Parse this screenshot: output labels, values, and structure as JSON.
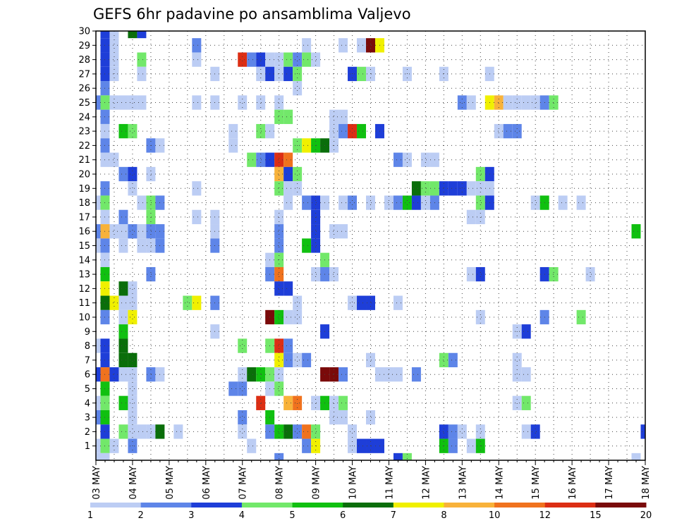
{
  "chart_data": {
    "type": "heatmap",
    "title": "GEFS 6hr padavine po ansamblima Valjevo",
    "x_tick_labels": [
      "03 MAY",
      "04 MAY",
      "05 MAY",
      "06 MAY",
      "07 MAY",
      "08 MAY",
      "09 MAY",
      "10 MAY",
      "11 MAY",
      "12 MAY",
      "13 MAY",
      "14 MAY",
      "15 MAY",
      "16 MAY",
      "17 MAY",
      "18 MAY"
    ],
    "y_tick_labels": [
      "1",
      "2",
      "3",
      "4",
      "5",
      "6",
      "7",
      "8",
      "9",
      "10",
      "11",
      "12",
      "13",
      "14",
      "15",
      "16",
      "17",
      "18",
      "19",
      "20",
      "21",
      "22",
      "23",
      "24",
      "25",
      "26",
      "27",
      "28",
      "29",
      "30"
    ],
    "x_range": [
      "03 MAY 00Z",
      "18 MAY 00Z"
    ],
    "time_step_hours": 6,
    "y_range": [
      1,
      30
    ],
    "grid": "dotted",
    "colorbar": {
      "position": "bottom",
      "labels": [
        "1",
        "2",
        "3",
        "4",
        "5",
        "6",
        "7",
        "8",
        "10",
        "12",
        "15",
        "20"
      ],
      "colors": [
        "#bccdf4",
        "#5e85e8",
        "#1e3ed8",
        "#72e86a",
        "#10c010",
        "#0a6e0a",
        "#f0f000",
        "#f8b23a",
        "#f0721e",
        "#dc2e14",
        "#7a0a0a"
      ]
    },
    "cells_note": "Each cell: [member, six_hour_step_from_03_MAY_00Z, color_class_index 0..10]",
    "cells": [
      [
        30,
        1,
        2
      ],
      [
        30,
        2,
        0
      ],
      [
        30,
        4,
        5
      ],
      [
        30,
        5,
        2
      ],
      [
        29,
        1,
        2
      ],
      [
        29,
        2,
        0
      ],
      [
        29,
        11,
        1
      ],
      [
        29,
        23,
        0
      ],
      [
        29,
        27,
        0
      ],
      [
        29,
        29,
        0
      ],
      [
        29,
        30,
        10
      ],
      [
        29,
        31,
        6
      ],
      [
        28,
        1,
        2
      ],
      [
        28,
        2,
        0
      ],
      [
        28,
        5,
        3
      ],
      [
        28,
        11,
        0
      ],
      [
        28,
        16,
        9
      ],
      [
        28,
        17,
        1
      ],
      [
        28,
        18,
        2
      ],
      [
        28,
        19,
        0
      ],
      [
        28,
        20,
        0
      ],
      [
        28,
        21,
        3
      ],
      [
        28,
        22,
        1
      ],
      [
        28,
        23,
        3
      ],
      [
        28,
        24,
        0
      ],
      [
        27,
        1,
        2
      ],
      [
        27,
        2,
        0
      ],
      [
        27,
        5,
        0
      ],
      [
        27,
        13,
        0
      ],
      [
        27,
        18,
        0
      ],
      [
        27,
        19,
        2
      ],
      [
        27,
        20,
        0
      ],
      [
        27,
        21,
        2
      ],
      [
        27,
        22,
        3
      ],
      [
        27,
        28,
        2
      ],
      [
        27,
        29,
        3
      ],
      [
        27,
        30,
        0
      ],
      [
        27,
        34,
        0
      ],
      [
        27,
        38,
        0
      ],
      [
        27,
        43,
        0
      ],
      [
        26,
        1,
        1
      ],
      [
        26,
        22,
        0
      ],
      [
        25,
        0,
        1
      ],
      [
        25,
        1,
        3
      ],
      [
        25,
        2,
        0
      ],
      [
        25,
        3,
        0
      ],
      [
        25,
        4,
        0
      ],
      [
        25,
        5,
        0
      ],
      [
        25,
        11,
        0
      ],
      [
        25,
        13,
        0
      ],
      [
        25,
        16,
        0
      ],
      [
        25,
        18,
        0
      ],
      [
        25,
        20,
        0
      ],
      [
        25,
        40,
        1
      ],
      [
        25,
        41,
        0
      ],
      [
        25,
        43,
        6
      ],
      [
        25,
        44,
        7
      ],
      [
        25,
        45,
        0
      ],
      [
        25,
        46,
        0
      ],
      [
        25,
        47,
        0
      ],
      [
        25,
        48,
        0
      ],
      [
        25,
        49,
        1
      ],
      [
        25,
        50,
        3
      ],
      [
        24,
        1,
        1
      ],
      [
        24,
        20,
        3
      ],
      [
        24,
        21,
        3
      ],
      [
        24,
        26,
        0
      ],
      [
        24,
        27,
        0
      ],
      [
        23,
        1,
        0
      ],
      [
        23,
        3,
        4
      ],
      [
        23,
        4,
        3
      ],
      [
        23,
        15,
        0
      ],
      [
        23,
        18,
        3
      ],
      [
        23,
        19,
        0
      ],
      [
        23,
        26,
        0
      ],
      [
        23,
        27,
        1
      ],
      [
        23,
        28,
        9
      ],
      [
        23,
        29,
        4
      ],
      [
        23,
        31,
        2
      ],
      [
        23,
        44,
        0
      ],
      [
        23,
        45,
        1
      ],
      [
        23,
        46,
        1
      ],
      [
        22,
        1,
        1
      ],
      [
        22,
        6,
        1
      ],
      [
        22,
        7,
        0
      ],
      [
        22,
        15,
        0
      ],
      [
        22,
        22,
        3
      ],
      [
        22,
        23,
        6
      ],
      [
        22,
        24,
        4
      ],
      [
        22,
        25,
        5
      ],
      [
        22,
        26,
        0
      ],
      [
        21,
        1,
        0
      ],
      [
        21,
        2,
        0
      ],
      [
        21,
        17,
        3
      ],
      [
        21,
        18,
        1
      ],
      [
        21,
        19,
        2
      ],
      [
        21,
        20,
        9
      ],
      [
        21,
        21,
        8
      ],
      [
        21,
        33,
        1
      ],
      [
        21,
        34,
        0
      ],
      [
        21,
        36,
        0
      ],
      [
        21,
        37,
        0
      ],
      [
        20,
        3,
        1
      ],
      [
        20,
        4,
        2
      ],
      [
        20,
        6,
        0
      ],
      [
        20,
        20,
        7
      ],
      [
        20,
        21,
        2
      ],
      [
        20,
        22,
        3
      ],
      [
        20,
        42,
        3
      ],
      [
        20,
        43,
        2
      ],
      [
        19,
        1,
        1
      ],
      [
        19,
        4,
        0
      ],
      [
        19,
        11,
        0
      ],
      [
        19,
        20,
        3
      ],
      [
        19,
        21,
        0
      ],
      [
        19,
        22,
        0
      ],
      [
        19,
        35,
        5
      ],
      [
        19,
        36,
        3
      ],
      [
        19,
        37,
        3
      ],
      [
        19,
        38,
        2
      ],
      [
        19,
        39,
        2
      ],
      [
        19,
        40,
        2
      ],
      [
        19,
        41,
        0
      ],
      [
        19,
        42,
        0
      ],
      [
        19,
        43,
        0
      ],
      [
        18,
        0,
        0
      ],
      [
        18,
        1,
        3
      ],
      [
        18,
        5,
        0
      ],
      [
        18,
        6,
        3
      ],
      [
        18,
        7,
        1
      ],
      [
        18,
        21,
        0
      ],
      [
        18,
        23,
        1
      ],
      [
        18,
        24,
        2
      ],
      [
        18,
        25,
        0
      ],
      [
        18,
        27,
        0
      ],
      [
        18,
        28,
        1
      ],
      [
        18,
        30,
        0
      ],
      [
        18,
        32,
        0
      ],
      [
        18,
        33,
        1
      ],
      [
        18,
        34,
        4
      ],
      [
        18,
        35,
        2
      ],
      [
        18,
        36,
        0
      ],
      [
        18,
        37,
        1
      ],
      [
        18,
        42,
        3
      ],
      [
        18,
        43,
        2
      ],
      [
        18,
        48,
        0
      ],
      [
        18,
        49,
        4
      ],
      [
        18,
        51,
        0
      ],
      [
        18,
        53,
        0
      ],
      [
        17,
        1,
        0
      ],
      [
        17,
        3,
        1
      ],
      [
        17,
        6,
        3
      ],
      [
        17,
        11,
        0
      ],
      [
        17,
        13,
        0
      ],
      [
        17,
        20,
        0
      ],
      [
        17,
        24,
        2
      ],
      [
        17,
        41,
        0
      ],
      [
        17,
        42,
        0
      ],
      [
        16,
        0,
        1
      ],
      [
        16,
        1,
        7
      ],
      [
        16,
        2,
        0
      ],
      [
        16,
        3,
        0
      ],
      [
        16,
        4,
        1
      ],
      [
        16,
        5,
        0
      ],
      [
        16,
        6,
        1
      ],
      [
        16,
        7,
        1
      ],
      [
        16,
        13,
        0
      ],
      [
        16,
        20,
        1
      ],
      [
        16,
        24,
        2
      ],
      [
        16,
        26,
        0
      ],
      [
        16,
        27,
        0
      ],
      [
        16,
        59,
        4
      ],
      [
        15,
        0,
        0
      ],
      [
        15,
        1,
        1
      ],
      [
        15,
        3,
        0
      ],
      [
        15,
        5,
        0
      ],
      [
        15,
        6,
        0
      ],
      [
        15,
        7,
        1
      ],
      [
        15,
        13,
        1
      ],
      [
        15,
        20,
        1
      ],
      [
        15,
        23,
        4
      ],
      [
        15,
        24,
        2
      ],
      [
        14,
        1,
        0
      ],
      [
        14,
        19,
        0
      ],
      [
        14,
        20,
        3
      ],
      [
        14,
        25,
        3
      ],
      [
        13,
        1,
        4
      ],
      [
        13,
        6,
        1
      ],
      [
        13,
        19,
        1
      ],
      [
        13,
        20,
        8
      ],
      [
        13,
        24,
        0
      ],
      [
        13,
        25,
        1
      ],
      [
        13,
        26,
        0
      ],
      [
        13,
        41,
        0
      ],
      [
        13,
        42,
        2
      ],
      [
        13,
        49,
        2
      ],
      [
        13,
        50,
        3
      ],
      [
        13,
        54,
        0
      ],
      [
        12,
        1,
        6
      ],
      [
        12,
        3,
        5
      ],
      [
        12,
        4,
        0
      ],
      [
        12,
        20,
        2
      ],
      [
        12,
        21,
        2
      ],
      [
        11,
        1,
        5
      ],
      [
        11,
        2,
        6
      ],
      [
        11,
        3,
        0
      ],
      [
        11,
        4,
        0
      ],
      [
        11,
        10,
        3
      ],
      [
        11,
        11,
        6
      ],
      [
        11,
        13,
        1
      ],
      [
        11,
        22,
        0
      ],
      [
        11,
        28,
        0
      ],
      [
        11,
        29,
        2
      ],
      [
        11,
        30,
        2
      ],
      [
        11,
        33,
        0
      ],
      [
        10,
        1,
        1
      ],
      [
        10,
        3,
        0
      ],
      [
        10,
        4,
        6
      ],
      [
        10,
        19,
        10
      ],
      [
        10,
        20,
        4
      ],
      [
        10,
        21,
        0
      ],
      [
        10,
        22,
        0
      ],
      [
        10,
        42,
        0
      ],
      [
        10,
        49,
        1
      ],
      [
        10,
        53,
        3
      ],
      [
        9,
        3,
        4
      ],
      [
        9,
        13,
        0
      ],
      [
        9,
        25,
        2
      ],
      [
        9,
        46,
        0
      ],
      [
        9,
        47,
        2
      ],
      [
        8,
        0,
        0
      ],
      [
        8,
        1,
        2
      ],
      [
        8,
        3,
        5
      ],
      [
        8,
        16,
        3
      ],
      [
        8,
        19,
        3
      ],
      [
        8,
        20,
        9
      ],
      [
        8,
        21,
        1
      ],
      [
        7,
        1,
        2
      ],
      [
        7,
        3,
        5
      ],
      [
        7,
        4,
        5
      ],
      [
        7,
        20,
        6
      ],
      [
        7,
        21,
        1
      ],
      [
        7,
        22,
        0
      ],
      [
        7,
        23,
        1
      ],
      [
        7,
        30,
        0
      ],
      [
        7,
        38,
        3
      ],
      [
        7,
        39,
        1
      ],
      [
        7,
        46,
        0
      ],
      [
        6,
        0,
        2
      ],
      [
        6,
        1,
        8
      ],
      [
        6,
        2,
        2
      ],
      [
        6,
        3,
        0
      ],
      [
        6,
        4,
        0
      ],
      [
        6,
        6,
        1
      ],
      [
        6,
        7,
        0
      ],
      [
        6,
        16,
        0
      ],
      [
        6,
        17,
        5
      ],
      [
        6,
        18,
        4
      ],
      [
        6,
        19,
        3
      ],
      [
        6,
        20,
        0
      ],
      [
        6,
        25,
        10
      ],
      [
        6,
        26,
        10
      ],
      [
        6,
        27,
        1
      ],
      [
        6,
        31,
        0
      ],
      [
        6,
        32,
        0
      ],
      [
        6,
        33,
        0
      ],
      [
        6,
        35,
        1
      ],
      [
        6,
        46,
        0
      ],
      [
        6,
        47,
        0
      ],
      [
        5,
        1,
        4
      ],
      [
        5,
        4,
        0
      ],
      [
        5,
        15,
        1
      ],
      [
        5,
        16,
        1
      ],
      [
        5,
        19,
        0
      ],
      [
        5,
        20,
        3
      ],
      [
        4,
        0,
        0
      ],
      [
        4,
        1,
        3
      ],
      [
        4,
        3,
        4
      ],
      [
        4,
        4,
        0
      ],
      [
        4,
        18,
        9
      ],
      [
        4,
        21,
        7
      ],
      [
        4,
        22,
        8
      ],
      [
        4,
        24,
        0
      ],
      [
        4,
        25,
        4
      ],
      [
        4,
        26,
        0
      ],
      [
        4,
        27,
        3
      ],
      [
        4,
        46,
        0
      ],
      [
        4,
        47,
        3
      ],
      [
        3,
        0,
        1
      ],
      [
        3,
        1,
        4
      ],
      [
        3,
        4,
        0
      ],
      [
        3,
        16,
        1
      ],
      [
        3,
        19,
        4
      ],
      [
        3,
        26,
        0
      ],
      [
        3,
        27,
        0
      ],
      [
        3,
        30,
        0
      ],
      [
        2,
        1,
        2
      ],
      [
        2,
        3,
        3
      ],
      [
        2,
        4,
        0
      ],
      [
        2,
        5,
        0
      ],
      [
        2,
        6,
        0
      ],
      [
        2,
        7,
        5
      ],
      [
        2,
        9,
        0
      ],
      [
        2,
        16,
        0
      ],
      [
        2,
        19,
        1
      ],
      [
        2,
        20,
        4
      ],
      [
        2,
        21,
        5
      ],
      [
        2,
        22,
        1
      ],
      [
        2,
        23,
        8
      ],
      [
        2,
        24,
        3
      ],
      [
        2,
        28,
        0
      ],
      [
        2,
        38,
        2
      ],
      [
        2,
        39,
        1
      ],
      [
        2,
        40,
        0
      ],
      [
        2,
        42,
        0
      ],
      [
        2,
        47,
        0
      ],
      [
        2,
        48,
        2
      ],
      [
        2,
        60,
        2
      ],
      [
        1,
        0,
        0
      ],
      [
        1,
        1,
        3
      ],
      [
        1,
        2,
        0
      ],
      [
        1,
        4,
        1
      ],
      [
        1,
        17,
        0
      ],
      [
        1,
        23,
        1
      ],
      [
        1,
        24,
        6
      ],
      [
        1,
        28,
        0
      ],
      [
        1,
        29,
        2
      ],
      [
        1,
        30,
        2
      ],
      [
        1,
        31,
        2
      ],
      [
        1,
        38,
        4
      ],
      [
        1,
        39,
        1
      ],
      [
        1,
        41,
        0
      ],
      [
        1,
        42,
        4
      ],
      [
        0,
        0,
        0
      ],
      [
        0,
        1,
        0
      ],
      [
        0,
        20,
        1
      ],
      [
        0,
        33,
        2
      ],
      [
        0,
        34,
        3
      ],
      [
        0,
        59,
        0
      ]
    ]
  }
}
